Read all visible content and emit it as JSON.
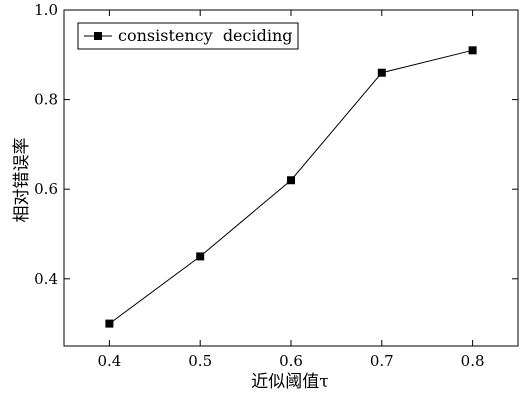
{
  "chart_data": {
    "type": "line",
    "x": [
      0.4,
      0.5,
      0.6,
      0.7,
      0.8
    ],
    "series": [
      {
        "name": "consistency  deciding",
        "values": [
          0.3,
          0.45,
          0.62,
          0.86,
          0.91
        ],
        "marker": "square",
        "color": "#000000"
      }
    ],
    "x_ticks": [
      "0.4",
      "0.5",
      "0.6",
      "0.7",
      "0.8"
    ],
    "x_tick_values": [
      0.4,
      0.5,
      0.6,
      0.7,
      0.8
    ],
    "y_ticks": [
      "0.4",
      "0.6",
      "0.8",
      "1.0"
    ],
    "y_tick_values": [
      0.4,
      0.6,
      0.8,
      1.0
    ],
    "xlabel": "近似阈值τ",
    "ylabel": "相对错误率",
    "xlim": [
      0.35,
      0.85
    ],
    "ylim": [
      0.25,
      1.0
    ],
    "grid": false,
    "legend_position": "top-left"
  }
}
